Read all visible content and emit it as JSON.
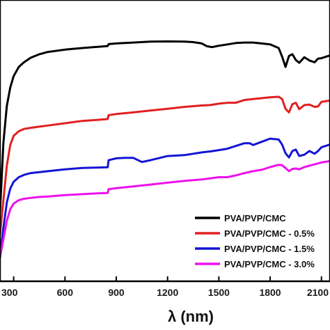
{
  "chart_data": {
    "type": "line",
    "title": "",
    "xlabel": "λ (nm)",
    "ylabel": "",
    "xlim": [
      220,
      2150
    ],
    "ylim": [
      0,
      100
    ],
    "x_ticks": [
      300,
      600,
      900,
      1200,
      1500,
      1800,
      2100
    ],
    "x_tick_labels": [
      "300",
      "600",
      "900",
      "1200",
      "1500",
      "1800",
      "2100"
    ],
    "grid": false,
    "legend_position": "bottom-right",
    "series": [
      {
        "name": "PVA/PVP/CMC",
        "color": "#000000",
        "x": [
          220,
          240,
          260,
          280,
          300,
          330,
          360,
          400,
          450,
          500,
          600,
          700,
          800,
          850,
          855,
          900,
          1000,
          1100,
          1200,
          1300,
          1350,
          1400,
          1430,
          1460,
          1500,
          1550,
          1600,
          1650,
          1700,
          1750,
          1800,
          1850,
          1870,
          1890,
          1910,
          1930,
          1950,
          1970,
          2000,
          2030,
          2060,
          2080,
          2100,
          2150
        ],
        "y": [
          20,
          50,
          66,
          74,
          79,
          83,
          85,
          87,
          88.5,
          89.5,
          90.5,
          91.2,
          91.8,
          92.1,
          92.9,
          93.2,
          93.6,
          94.0,
          94.1,
          94.0,
          93.8,
          93.2,
          92.0,
          91.6,
          92.2,
          92.8,
          93.4,
          93.6,
          93.6,
          93.2,
          92.8,
          91.2,
          87.5,
          83.0,
          87.8,
          88.5,
          86.0,
          84.8,
          87.2,
          85.8,
          85.0,
          86.6,
          86.8,
          88.0
        ]
      },
      {
        "name": "PVA/PVP/CMC - 0.5%",
        "color": "#e02020",
        "x": [
          220,
          240,
          260,
          280,
          300,
          330,
          360,
          400,
          450,
          500,
          600,
          700,
          800,
          850,
          855,
          900,
          1000,
          1100,
          1200,
          1300,
          1400,
          1450,
          1500,
          1550,
          1600,
          1650,
          1700,
          1750,
          1800,
          1850,
          1870,
          1890,
          1910,
          1930,
          1950,
          1970,
          2000,
          2030,
          2060,
          2080,
          2100,
          2150
        ],
        "y": [
          10,
          25,
          40,
          49,
          53,
          55,
          56,
          56.5,
          57,
          57.5,
          58.5,
          59.5,
          60.0,
          60.3,
          62.0,
          62.5,
          63.2,
          64.0,
          64.8,
          65.6,
          66.2,
          66.4,
          67.0,
          67.4,
          67.4,
          68.6,
          69.0,
          69.4,
          69.8,
          70.0,
          69.0,
          64.8,
          63.2,
          66.8,
          67.4,
          64.6,
          66.4,
          66.6,
          65.6,
          65.8,
          67.8,
          68.4
        ]
      },
      {
        "name": "PVA/PVP/CMC - 1.5%",
        "color": "#1414d8",
        "x": [
          220,
          240,
          260,
          280,
          300,
          330,
          360,
          400,
          450,
          500,
          600,
          700,
          800,
          850,
          855,
          900,
          950,
          1000,
          1050,
          1100,
          1200,
          1300,
          1400,
          1450,
          1500,
          1550,
          1600,
          1650,
          1680,
          1700,
          1750,
          1800,
          1850,
          1870,
          1890,
          1910,
          1930,
          1950,
          1970,
          2000,
          2030,
          2060,
          2080,
          2100,
          2150
        ],
        "y": [
          0,
          13,
          24,
          30,
          33,
          35,
          36,
          36.8,
          37.2,
          37.6,
          38.4,
          39.0,
          39.2,
          39.3,
          42.4,
          43.2,
          43.4,
          43.4,
          41.6,
          42.4,
          44.2,
          44.6,
          45.8,
          46.2,
          46.8,
          47.4,
          48.6,
          49.8,
          49.8,
          49.0,
          50.4,
          51.8,
          51.4,
          49.2,
          45.4,
          43.6,
          46.4,
          47.0,
          44.2,
          44.8,
          46.4,
          45.2,
          46.4,
          48.0,
          49.2
        ]
      },
      {
        "name": "PVA/PVP/CMC - 3.0%",
        "color": "#ee11ee",
        "x": [
          220,
          240,
          260,
          280,
          300,
          330,
          360,
          400,
          450,
          500,
          600,
          700,
          800,
          850,
          855,
          900,
          1000,
          1100,
          1200,
          1300,
          1400,
          1500,
          1550,
          1600,
          1650,
          1700,
          1750,
          1800,
          1850,
          1870,
          1890,
          1910,
          1930,
          1950,
          1970,
          2000,
          2050,
          2100,
          2150
        ],
        "y": [
          0,
          8,
          16,
          21,
          23.5,
          25,
          25.6,
          26,
          26.4,
          26.6,
          27.2,
          27.6,
          28.0,
          28.1,
          29.8,
          30.2,
          31.0,
          31.8,
          32.6,
          33.4,
          34.0,
          35.0,
          35.0,
          35.8,
          36.8,
          37.6,
          38.2,
          39.4,
          40.4,
          40.2,
          39.0,
          37.6,
          38.6,
          38.8,
          38.4,
          39.4,
          40.4,
          41.4,
          42.0
        ]
      }
    ]
  }
}
